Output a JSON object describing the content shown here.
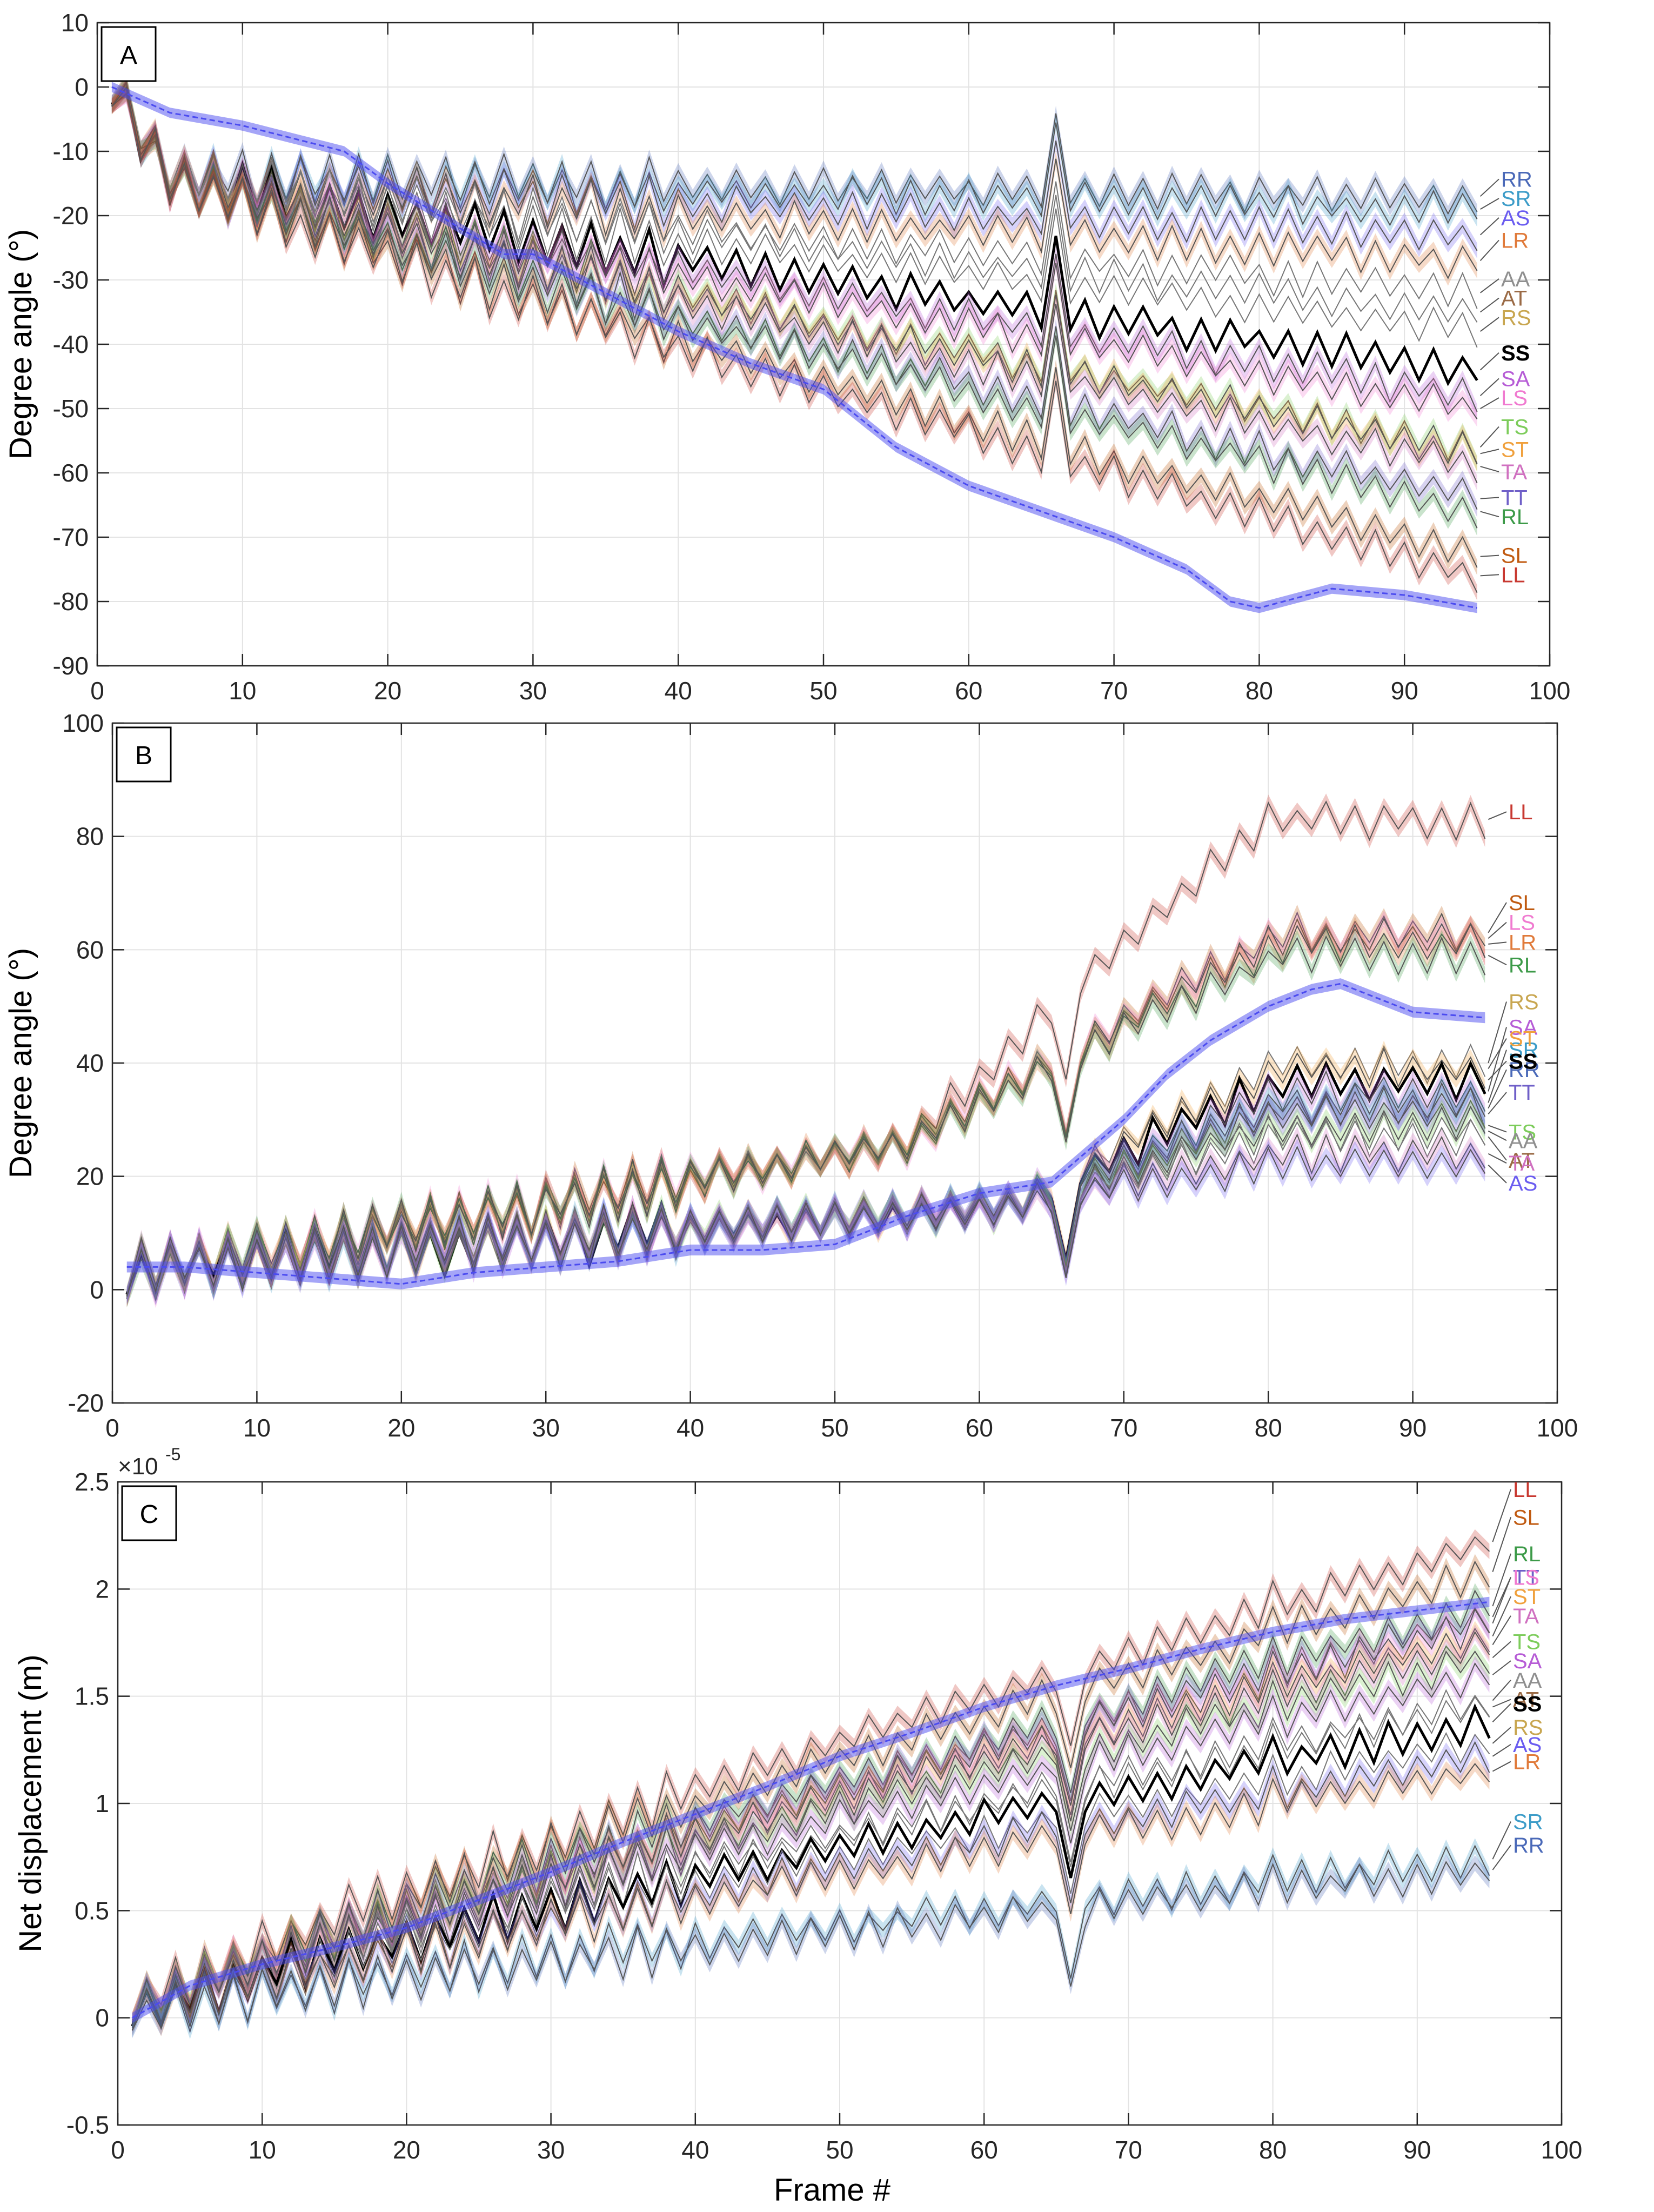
{
  "xlabel": "Frame #",
  "colors": {
    "RR": "#4a69b8",
    "SR": "#3c9cc8",
    "AS": "#6a5cf0",
    "LR": "#e07a3a",
    "AA": "#8f8f8f",
    "AT": "#9a6a45",
    "RS": "#c8a650",
    "SS": "#000000",
    "SA": "#b65cd6",
    "LS": "#f07ad0",
    "TS": "#7ccc5a",
    "ST": "#f0a03c",
    "TA": "#d070c0",
    "TT": "#6f5fc8",
    "RL": "#3c9a48",
    "SL": "#c05a10",
    "LL": "#c83830",
    "blue": "#4b4bf0",
    "grid": "#e3e3e3"
  },
  "chart_data": [
    {
      "panel": "A",
      "type": "line",
      "ylabel": "Degree angle (°)",
      "xlim": [
        0,
        100
      ],
      "ylim": [
        -90,
        10
      ],
      "xticks": [
        "0",
        "10",
        "20",
        "30",
        "40",
        "50",
        "60",
        "70",
        "80",
        "90",
        "100"
      ],
      "yticks": [
        "-90",
        "-80",
        "-70",
        "-60",
        "-50",
        "-40",
        "-30",
        "-20",
        "-10",
        "0",
        "10"
      ],
      "blue_mean": {
        "x": [
          1,
          5,
          10,
          17,
          20,
          25,
          28,
          30,
          35,
          40,
          45,
          50,
          55,
          60,
          65,
          70,
          75,
          78,
          80,
          85,
          90,
          95
        ],
        "y": [
          0,
          -4,
          -6,
          -10,
          -15,
          -22,
          -26,
          -26,
          -32,
          -38,
          -43,
          -47,
          -56,
          -62,
          -66,
          -70,
          -75,
          -80,
          -81,
          -78,
          -79,
          -81
        ]
      },
      "series": [
        {
          "name": "RR",
          "end": -17
        },
        {
          "name": "SR",
          "end": -19
        },
        {
          "name": "AS",
          "end": -23
        },
        {
          "name": "LR",
          "end": -27
        },
        {
          "name": "AA",
          "end": -32
        },
        {
          "name": "AT",
          "end": -35
        },
        {
          "name": "RS",
          "end": -38
        },
        {
          "name": "SS",
          "end": -44
        },
        {
          "name": "SA",
          "end": -48
        },
        {
          "name": "LS",
          "end": -50
        },
        {
          "name": "TS",
          "end": -56
        },
        {
          "name": "ST",
          "end": -57
        },
        {
          "name": "TA",
          "end": -59
        },
        {
          "name": "TT",
          "end": -64
        },
        {
          "name": "RL",
          "end": -66
        },
        {
          "name": "SL",
          "end": -73
        },
        {
          "name": "LL",
          "end": -76
        }
      ],
      "label_order": [
        "RR",
        "SR",
        "AS",
        "LR",
        "AA",
        "AT",
        "RS",
        "SS",
        "SA",
        "LS",
        "TS",
        "ST",
        "TA",
        "TT",
        "RL",
        "SL",
        "LL"
      ],
      "label_y": [
        -15.5,
        -18.5,
        -21.5,
        -25,
        -31,
        -34,
        -37,
        -42.5,
        -46.5,
        -49.5,
        -54,
        -57.5,
        -61,
        -65,
        -68,
        -74,
        -77
      ]
    },
    {
      "panel": "B",
      "type": "line",
      "ylabel": "Degree angle (°)",
      "xlim": [
        0,
        100
      ],
      "ylim": [
        -20,
        100
      ],
      "xticks": [
        "0",
        "10",
        "20",
        "30",
        "40",
        "50",
        "60",
        "70",
        "80",
        "90",
        "100"
      ],
      "yticks": [
        "-20",
        "0",
        "20",
        "40",
        "60",
        "80",
        "100"
      ],
      "blue_mean": {
        "x": [
          1,
          5,
          10,
          15,
          20,
          25,
          30,
          35,
          40,
          45,
          50,
          55,
          60,
          65,
          70,
          73,
          76,
          80,
          83,
          85,
          90,
          95
        ],
        "y": [
          4,
          4,
          3,
          2,
          1,
          3,
          4,
          5,
          7,
          7,
          8,
          13,
          17,
          19,
          30,
          38,
          44,
          50,
          53,
          54,
          49,
          48
        ]
      },
      "series": [
        {
          "name": "LL",
          "end": 83
        },
        {
          "name": "SL",
          "end": 63
        },
        {
          "name": "LS",
          "end": 62
        },
        {
          "name": "LR",
          "end": 61
        },
        {
          "name": "RL",
          "end": 59
        },
        {
          "name": "RS",
          "end": 40
        },
        {
          "name": "ST",
          "end": 39
        },
        {
          "name": "SS",
          "end": 37
        },
        {
          "name": "SA",
          "end": 35
        },
        {
          "name": "SR",
          "end": 33
        },
        {
          "name": "RR",
          "end": 32
        },
        {
          "name": "TT",
          "end": 31
        },
        {
          "name": "TS",
          "end": 29
        },
        {
          "name": "AA",
          "end": 28
        },
        {
          "name": "AT",
          "end": 27
        },
        {
          "name": "TA",
          "end": 24
        },
        {
          "name": "AS",
          "end": 22
        }
      ],
      "label_order": [
        "LL",
        "SL",
        "LS",
        "LR",
        "RL",
        "RS",
        "SA",
        "SR",
        "RR",
        "TT",
        "ST",
        "SS",
        "TS",
        "AA",
        "AT",
        "TA",
        "AS"
      ],
      "label_y": [
        83,
        67,
        63.5,
        60,
        56,
        49.5,
        45,
        41,
        37.5,
        33.5,
        43,
        39,
        26.5,
        25,
        21.5,
        21,
        17.5
      ]
    },
    {
      "panel": "C",
      "type": "line",
      "ylabel": "Net displacement (m)",
      "y_multiplier": "×10",
      "y_exponent": "-5",
      "xlim": [
        0,
        100
      ],
      "ylim": [
        -0.5,
        2.5
      ],
      "xticks": [
        "0",
        "10",
        "20",
        "30",
        "40",
        "50",
        "60",
        "70",
        "80",
        "90",
        "100"
      ],
      "yticks": [
        "-0.5",
        "0",
        "0.5",
        "1",
        "1.5",
        "2",
        "2.5"
      ],
      "blue_mean": {
        "x": [
          1,
          5,
          10,
          15,
          20,
          25,
          30,
          35,
          40,
          45,
          50,
          55,
          60,
          65,
          70,
          75,
          80,
          85,
          90,
          95
        ],
        "y": [
          0,
          0.15,
          0.25,
          0.33,
          0.42,
          0.55,
          0.68,
          0.82,
          0.95,
          1.08,
          1.22,
          1.33,
          1.45,
          1.55,
          1.63,
          1.72,
          1.8,
          1.86,
          1.9,
          1.94
        ]
      },
      "series": [
        {
          "name": "LL",
          "end": 2.22
        },
        {
          "name": "SL",
          "end": 2.08
        },
        {
          "name": "RL",
          "end": 1.92
        },
        {
          "name": "TT",
          "end": 1.87
        },
        {
          "name": "LS",
          "end": 1.84
        },
        {
          "name": "ST",
          "end": 1.78
        },
        {
          "name": "TA",
          "end": 1.74
        },
        {
          "name": "TS",
          "end": 1.68
        },
        {
          "name": "SA",
          "end": 1.6
        },
        {
          "name": "AA",
          "end": 1.48
        },
        {
          "name": "AT",
          "end": 1.45
        },
        {
          "name": "SS",
          "end": 1.38
        },
        {
          "name": "RS",
          "end": 1.28
        },
        {
          "name": "AS",
          "end": 1.22
        },
        {
          "name": "LR",
          "end": 1.15
        },
        {
          "name": "SR",
          "end": 0.74
        },
        {
          "name": "RR",
          "end": 0.69
        }
      ],
      "label_order": [
        "LL",
        "SL",
        "RL",
        "TT",
        "LS",
        "ST",
        "TA",
        "TS",
        "SA",
        "AA",
        "AT",
        "SS",
        "RS",
        "AS",
        "LR",
        "SR",
        "RR"
      ],
      "label_y": [
        2.43,
        2.3,
        2.13,
        2.02,
        2.02,
        1.93,
        1.84,
        1.72,
        1.63,
        1.54,
        1.45,
        1.43,
        1.32,
        1.24,
        1.16,
        0.88,
        0.77
      ]
    }
  ],
  "panel_letters": [
    "A",
    "B",
    "C"
  ]
}
